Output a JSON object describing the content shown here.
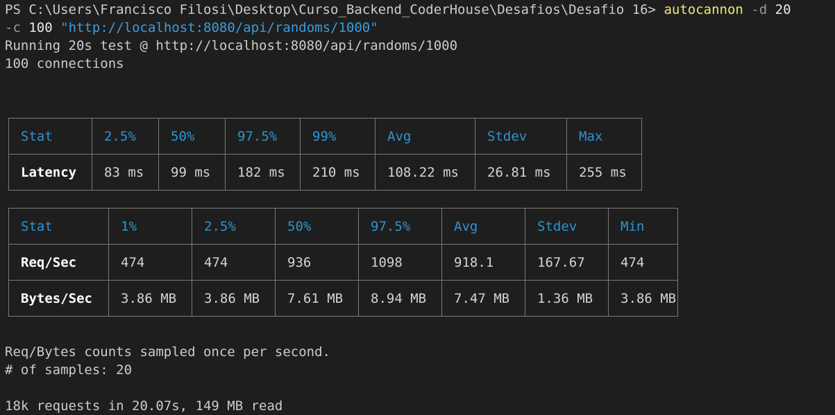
{
  "terminal": {
    "prompt": "PS C:\\Users\\Francisco Filosi\\Desktop\\Curso_Backend_CoderHouse\\Desafios\\Desafio 16>",
    "command": "autocannon",
    "flag_d": "-d",
    "flag_d_value": "20",
    "flag_c": "-c",
    "flag_c_value": "100",
    "url_arg": "\"http://localhost:8080/api/randoms/1000\"",
    "running_line": "Running 20s test @ http://localhost:8080/api/randoms/1000",
    "connections_line": "100 connections",
    "footer_sampled": "Req/Bytes counts sampled once per second.",
    "footer_samples": "# of samples: 20",
    "footer_summary": "18k requests in 20.07s, 149 MB read"
  },
  "latency_table": {
    "headers": [
      "Stat",
      "2.5%",
      "50%",
      "97.5%",
      "99%",
      "Avg",
      "Stdev",
      "Max"
    ],
    "rows": [
      [
        "Latency",
        "83 ms",
        "99 ms",
        "182 ms",
        "210 ms",
        "108.22 ms",
        "26.81 ms",
        "255 ms"
      ]
    ]
  },
  "throughput_table": {
    "headers": [
      "Stat",
      "1%",
      "2.5%",
      "50%",
      "97.5%",
      "Avg",
      "Stdev",
      "Min"
    ],
    "rows": [
      [
        "Req/Sec",
        "474",
        "474",
        "936",
        "1098",
        "918.1",
        "167.67",
        "474"
      ],
      [
        "Bytes/Sec",
        "3.86 MB",
        "3.86 MB",
        "7.61 MB",
        "8.94 MB",
        "7.47 MB",
        "1.36 MB",
        "3.86 MB"
      ]
    ]
  },
  "colors": {
    "background": "#1e1e1e",
    "command": "#f2e66f",
    "string": "#3b9ddd",
    "table_header": "#2e95d3",
    "border": "#7a7a7a"
  }
}
